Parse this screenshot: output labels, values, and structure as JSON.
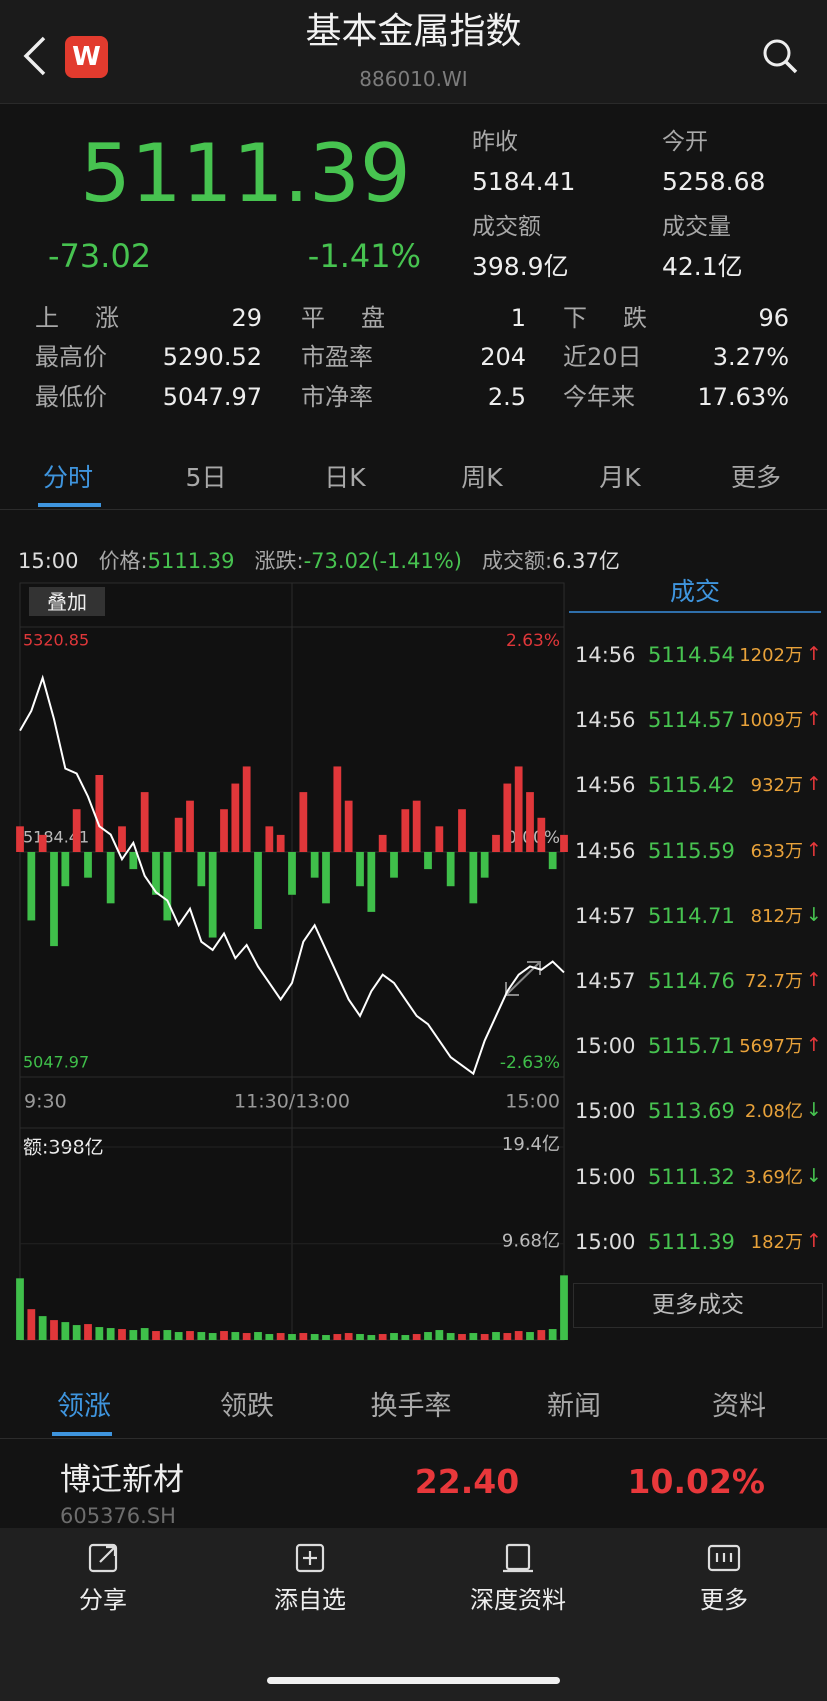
{
  "header": {
    "title": "基本金属指数",
    "code": "886010.WI",
    "logo": "W"
  },
  "quote": {
    "price": "5111.39",
    "change": "-73.02",
    "change_pct": "-1.41%",
    "stats": [
      {
        "label": "昨收",
        "value": "5184.41"
      },
      {
        "label": "今开",
        "value": "5258.68"
      },
      {
        "label": "成交额",
        "value": "398.9亿"
      },
      {
        "label": "成交量",
        "value": "42.1亿"
      }
    ]
  },
  "breadth": [
    [
      {
        "label": "上涨",
        "value": "29"
      },
      {
        "label": "平盘",
        "value": "1"
      },
      {
        "label": "下跌",
        "value": "96"
      }
    ],
    [
      {
        "label": "最高价",
        "value": "5290.52"
      },
      {
        "label": "市盈率",
        "value": "204"
      },
      {
        "label": "近20日",
        "value": "3.27%"
      }
    ],
    [
      {
        "label": "最低价",
        "value": "5047.97"
      },
      {
        "label": "市净率",
        "value": "2.5"
      },
      {
        "label": "今年来",
        "value": "17.63%"
      }
    ]
  ],
  "tabs": [
    "分时",
    "5日",
    "日K",
    "周K",
    "月K",
    "更多"
  ],
  "info_bar": {
    "time": "15:00",
    "price_label": "价格:",
    "price": "5111.39",
    "change_label": "涨跌:",
    "change": "-73.02(-1.41%)",
    "amount_label": "成交额:",
    "amount": "6.37亿"
  },
  "overlay_button": "叠加",
  "chart_data": [
    {
      "type": "line",
      "color": "#ffffff",
      "x": [
        0,
        5,
        10,
        15,
        20,
        25,
        30,
        35,
        40,
        45,
        50,
        55,
        60,
        65,
        70,
        75,
        80,
        85,
        90,
        95,
        100,
        105,
        110,
        115,
        120,
        125,
        130,
        135,
        140,
        145,
        150,
        155,
        160,
        165,
        170,
        175,
        180,
        185,
        190,
        195,
        200,
        205,
        210,
        215,
        220,
        225,
        230,
        235,
        240
      ],
      "values": [
        5258,
        5270,
        5290,
        5265,
        5235,
        5232,
        5218,
        5200,
        5195,
        5180,
        5190,
        5170,
        5160,
        5155,
        5140,
        5150,
        5130,
        5125,
        5135,
        5120,
        5128,
        5115,
        5105,
        5095,
        5105,
        5130,
        5140,
        5125,
        5110,
        5095,
        5085,
        5100,
        5110,
        5105,
        5095,
        5085,
        5080,
        5070,
        5060,
        5055,
        5050,
        5070,
        5085,
        5100,
        5110,
        5115,
        5113,
        5118,
        5111.39
      ],
      "bars": {
        "up_color": "#e0373a",
        "down_color": "#3fbf4a",
        "values": [
          0.3,
          -0.8,
          0.2,
          -1.1,
          -0.4,
          0.5,
          -0.3,
          0.9,
          -0.6,
          0.3,
          -0.2,
          0.7,
          -0.5,
          -0.8,
          0.4,
          0.6,
          -0.4,
          -1.0,
          0.5,
          0.8,
          1.0,
          -0.9,
          0.3,
          0.2,
          -0.5,
          0.7,
          -0.3,
          -0.6,
          1.0,
          0.6,
          -0.4,
          -0.7,
          0.2,
          -0.3,
          0.5,
          0.6,
          -0.2,
          0.3,
          -0.4,
          0.5,
          -0.6,
          -0.3,
          0.2,
          0.8,
          1.0,
          0.7,
          0.4,
          -0.2,
          0.2
        ]
      },
      "xlim": [
        0,
        240
      ],
      "xticks": [
        {
          "value": 0,
          "label": "9:30"
        },
        {
          "value": 120,
          "label": "11:30/13:00"
        },
        {
          "value": 240,
          "label": "15:00"
        }
      ],
      "ylim": [
        5047.97,
        5320.85
      ],
      "yticks": [
        5320.85,
        5184.41,
        5047.97
      ],
      "y2lim": [
        -2.63,
        2.63
      ],
      "y2ticks": [
        {
          "value": 2.63,
          "label": "2.63%"
        },
        {
          "value": 0,
          "label": "0.00%"
        },
        {
          "value": -2.63,
          "label": "-2.63%"
        }
      ],
      "grid": true
    },
    {
      "type": "bar",
      "title": "额:398亿",
      "x": [
        0,
        5,
        10,
        15,
        20,
        25,
        30,
        35,
        40,
        45,
        50,
        55,
        60,
        65,
        70,
        75,
        80,
        85,
        90,
        95,
        100,
        105,
        110,
        115,
        120,
        125,
        130,
        135,
        140,
        145,
        150,
        155,
        160,
        165,
        170,
        175,
        180,
        185,
        190,
        195,
        200,
        205,
        210,
        215,
        220,
        225,
        230,
        235,
        240
      ],
      "values": [
        6.2,
        3.1,
        2.4,
        2.0,
        1.8,
        1.5,
        1.6,
        1.3,
        1.2,
        1.1,
        1.0,
        1.2,
        0.9,
        1.0,
        0.8,
        0.9,
        0.8,
        0.7,
        0.9,
        0.8,
        0.7,
        0.8,
        0.6,
        0.7,
        0.6,
        0.7,
        0.6,
        0.5,
        0.6,
        0.7,
        0.6,
        0.5,
        0.6,
        0.7,
        0.5,
        0.6,
        0.8,
        1.0,
        0.7,
        0.6,
        0.7,
        0.6,
        0.8,
        0.7,
        0.9,
        0.8,
        1.0,
        1.1,
        6.5
      ],
      "colors": [
        "#3fbf4a",
        "#e0373a",
        "#3fbf4a",
        "#e0373a",
        "#3fbf4a",
        "#3fbf4a",
        "#e0373a",
        "#3fbf4a",
        "#3fbf4a",
        "#e0373a",
        "#3fbf4a",
        "#3fbf4a",
        "#e0373a",
        "#3fbf4a",
        "#3fbf4a",
        "#e0373a",
        "#3fbf4a",
        "#3fbf4a",
        "#e0373a",
        "#3fbf4a",
        "#e0373a",
        "#3fbf4a",
        "#3fbf4a",
        "#e0373a",
        "#3fbf4a",
        "#e0373a",
        "#3fbf4a",
        "#3fbf4a",
        "#e0373a",
        "#e0373a",
        "#3fbf4a",
        "#3fbf4a",
        "#e0373a",
        "#3fbf4a",
        "#3fbf4a",
        "#e0373a",
        "#3fbf4a",
        "#3fbf4a",
        "#3fbf4a",
        "#e0373a",
        "#3fbf4a",
        "#e0373a",
        "#3fbf4a",
        "#e0373a",
        "#e0373a",
        "#3fbf4a",
        "#e0373a",
        "#3fbf4a",
        "#3fbf4a"
      ],
      "xlim": [
        0,
        240
      ],
      "ylim": [
        0,
        19.4
      ],
      "yticks": [
        {
          "value": 19.4,
          "label": "19.4亿"
        },
        {
          "value": 9.68,
          "label": "9.68亿"
        }
      ]
    }
  ],
  "trades": {
    "title": "成交",
    "more": "更多成交",
    "rows": [
      {
        "time": "14:56",
        "price": "5114.54",
        "volume": "1202万",
        "arrow": "↑"
      },
      {
        "time": "14:56",
        "price": "5114.57",
        "volume": "1009万",
        "arrow": "↑"
      },
      {
        "time": "14:56",
        "price": "5115.42",
        "volume": "932万",
        "arrow": "↑"
      },
      {
        "time": "14:56",
        "price": "5115.59",
        "volume": "633万",
        "arrow": "↑"
      },
      {
        "time": "14:57",
        "price": "5114.71",
        "volume": "812万",
        "arrow": "↓"
      },
      {
        "time": "14:57",
        "price": "5114.76",
        "volume": "72.7万",
        "arrow": "↑"
      },
      {
        "time": "15:00",
        "price": "5115.71",
        "volume": "5697万",
        "arrow": "↑"
      },
      {
        "time": "15:00",
        "price": "5113.69",
        "volume": "2.08亿",
        "arrow": "↓"
      },
      {
        "time": "15:00",
        "price": "5111.32",
        "volume": "3.69亿",
        "arrow": "↓"
      },
      {
        "time": "15:00",
        "price": "5111.39",
        "volume": "182万",
        "arrow": "↑"
      }
    ]
  },
  "list_tabs": [
    "领涨",
    "领跌",
    "换手率",
    "新闻",
    "资料"
  ],
  "stock": {
    "name": "博迁新材",
    "code": "605376.SH",
    "price": "22.40",
    "change_pct": "10.02%"
  },
  "toolbar": [
    "分享",
    "添自选",
    "深度资料",
    "更多"
  ]
}
